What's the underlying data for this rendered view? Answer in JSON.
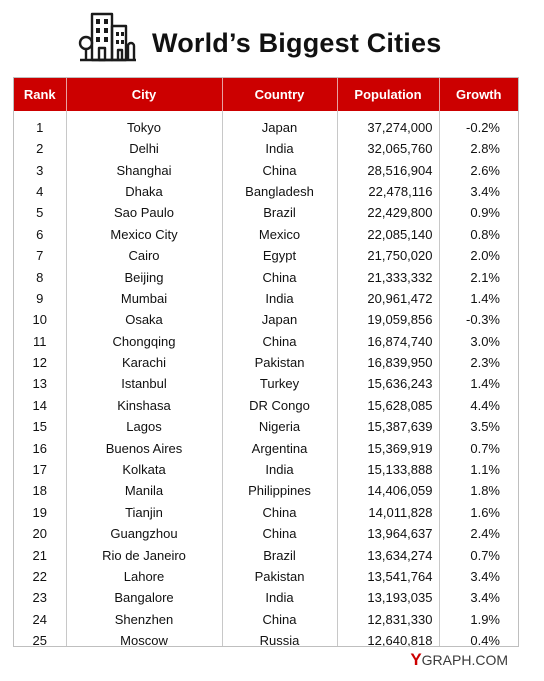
{
  "title": "World’s Biggest Cities",
  "logo": {
    "icon": "city-buildings-icon",
    "text_y": "Y",
    "text_rest": "GRAPH.COM",
    "accent_color": "#cc0000"
  },
  "colors": {
    "header_bg": "#cc0000",
    "header_text": "#ffffff"
  },
  "chart_data": {
    "type": "table",
    "title": "World’s Biggest Cities",
    "columns": [
      "Rank",
      "City",
      "Country",
      "Population",
      "Growth"
    ],
    "rows": [
      [
        "1",
        "Tokyo",
        "Japan",
        "37,274,000",
        "-0.2%"
      ],
      [
        "2",
        "Delhi",
        "India",
        "32,065,760",
        "2.8%"
      ],
      [
        "3",
        "Shanghai",
        "China",
        "28,516,904",
        "2.6%"
      ],
      [
        "4",
        "Dhaka",
        "Bangladesh",
        "22,478,116",
        "3.4%"
      ],
      [
        "5",
        "Sao Paulo",
        "Brazil",
        "22,429,800",
        "0.9%"
      ],
      [
        "6",
        "Mexico City",
        "Mexico",
        "22,085,140",
        "0.8%"
      ],
      [
        "7",
        "Cairo",
        "Egypt",
        "21,750,020",
        "2.0%"
      ],
      [
        "8",
        "Beijing",
        "China",
        "21,333,332",
        "2.1%"
      ],
      [
        "9",
        "Mumbai",
        "India",
        "20,961,472",
        "1.4%"
      ],
      [
        "10",
        "Osaka",
        "Japan",
        "19,059,856",
        "-0.3%"
      ],
      [
        "11",
        "Chongqing",
        "China",
        "16,874,740",
        "3.0%"
      ],
      [
        "12",
        "Karachi",
        "Pakistan",
        "16,839,950",
        "2.3%"
      ],
      [
        "13",
        "Istanbul",
        "Turkey",
        "15,636,243",
        "1.4%"
      ],
      [
        "14",
        "Kinshasa",
        "DR Congo",
        "15,628,085",
        "4.4%"
      ],
      [
        "15",
        "Lagos",
        "Nigeria",
        "15,387,639",
        "3.5%"
      ],
      [
        "16",
        "Buenos Aires",
        "Argentina",
        "15,369,919",
        "0.7%"
      ],
      [
        "17",
        "Kolkata",
        "India",
        "15,133,888",
        "1.1%"
      ],
      [
        "18",
        "Manila",
        "Philippines",
        "14,406,059",
        "1.8%"
      ],
      [
        "19",
        "Tianjin",
        "China",
        "14,011,828",
        "1.6%"
      ],
      [
        "20",
        "Guangzhou",
        "China",
        "13,964,637",
        "2.4%"
      ],
      [
        "21",
        "Rio de Janeiro",
        "Brazil",
        "13,634,274",
        "0.7%"
      ],
      [
        "22",
        "Lahore",
        "Pakistan",
        "13,541,764",
        "3.4%"
      ],
      [
        "23",
        "Bangalore",
        "India",
        "13,193,035",
        "3.4%"
      ],
      [
        "24",
        "Shenzhen",
        "China",
        "12,831,330",
        "1.9%"
      ],
      [
        "25",
        "Moscow",
        "Russia",
        "12,640,818",
        "0.4%"
      ]
    ]
  }
}
